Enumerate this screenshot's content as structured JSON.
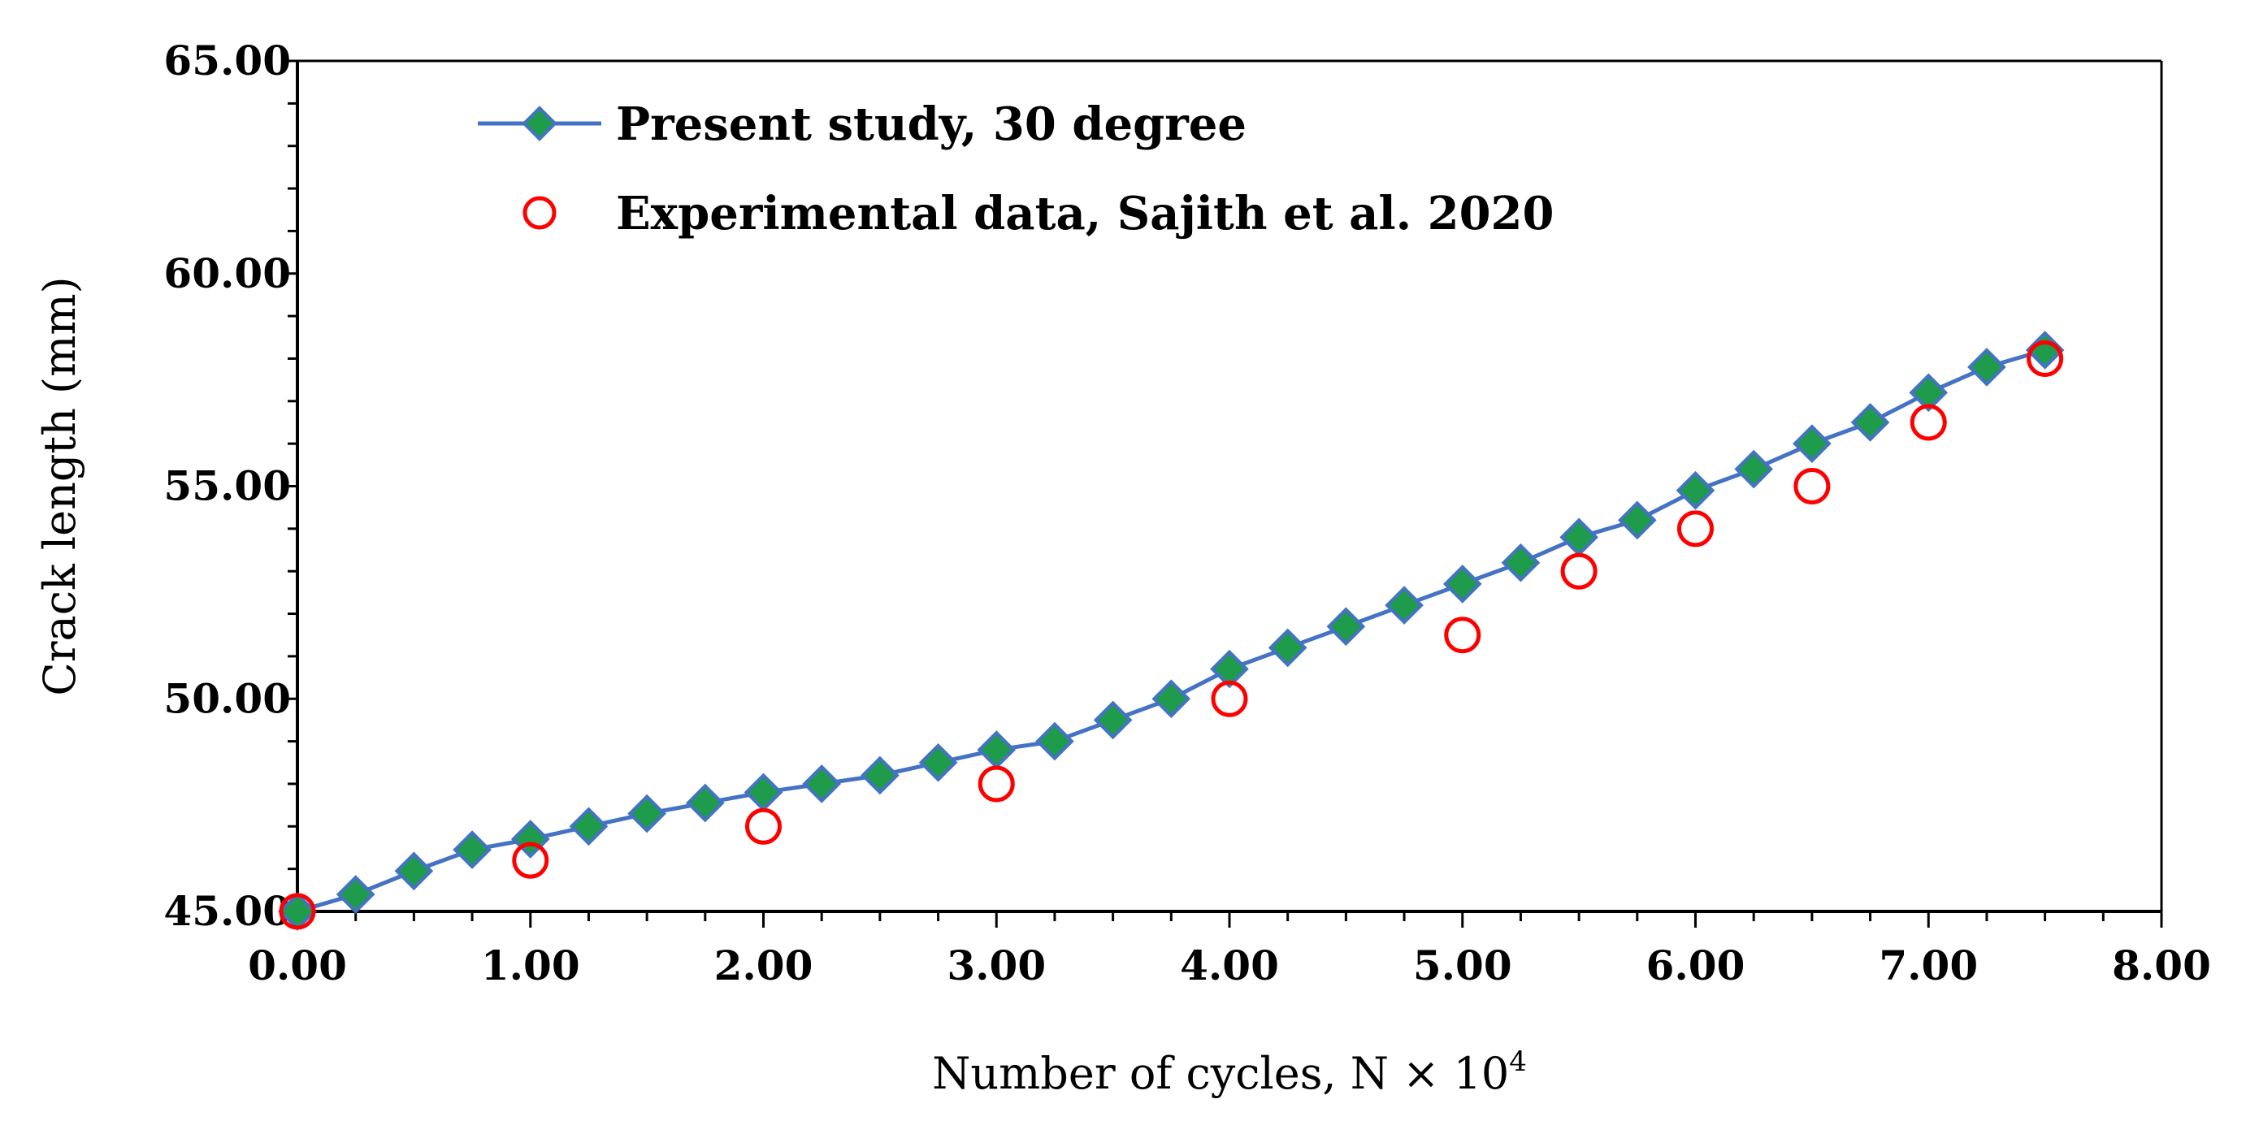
{
  "chart_data": {
    "type": "line",
    "xlabel": "Number of cycles, N ×  10",
    "xlabel_superscript": "4",
    "ylabel": "Crack length (mm)",
    "xlim": [
      0,
      8
    ],
    "ylim": [
      45,
      65
    ],
    "x_ticks": [
      "0.00",
      "1.00",
      "2.00",
      "3.00",
      "4.00",
      "5.00",
      "6.00",
      "7.00",
      "8.00"
    ],
    "y_ticks": [
      "45.00",
      "50.00",
      "55.00",
      "60.00",
      "65.00"
    ],
    "grid": false,
    "legend_position": "top-left",
    "series": [
      {
        "name": "Present study, 30 degree",
        "style": "line-diamond",
        "line_color": "#4472C4",
        "marker_color": "#1E9B4B",
        "x": [
          0,
          0.25,
          0.5,
          0.75,
          1.0,
          1.25,
          1.5,
          1.75,
          2.0,
          2.25,
          2.5,
          2.75,
          3.0,
          3.25,
          3.5,
          3.75,
          4.0,
          4.25,
          4.5,
          4.75,
          5.0,
          5.25,
          5.5,
          5.75,
          6.0,
          6.25,
          6.5,
          6.75,
          7.0,
          7.25,
          7.5
        ],
        "y": [
          45.0,
          45.4,
          45.95,
          46.45,
          46.7,
          47.0,
          47.3,
          47.55,
          47.8,
          48.0,
          48.2,
          48.5,
          48.8,
          49.0,
          49.5,
          50.0,
          50.7,
          51.2,
          51.7,
          52.2,
          52.7,
          53.2,
          53.8,
          54.2,
          54.9,
          55.4,
          56.0,
          56.5,
          57.2,
          57.8,
          58.2
        ]
      },
      {
        "name": "Experimental data, Sajith et al. 2020",
        "style": "open-circle",
        "marker_color": "#FF0000",
        "x": [
          0,
          1.0,
          2.0,
          3.0,
          4.0,
          5.0,
          5.5,
          6.0,
          6.5,
          7.0,
          7.5
        ],
        "y": [
          45.0,
          46.2,
          47.0,
          48.0,
          50.0,
          51.5,
          53.0,
          54.0,
          55.0,
          56.5,
          58.0
        ]
      }
    ]
  }
}
